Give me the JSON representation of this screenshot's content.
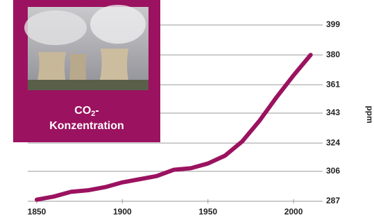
{
  "chart_data": {
    "type": "line",
    "annotation": {
      "text": "CO",
      "subscript": "2",
      "after": "-",
      "line2": "Konzentration"
    },
    "y_label": "ppm",
    "x": [
      1850,
      1860,
      1870,
      1880,
      1890,
      1900,
      1910,
      1920,
      1930,
      1940,
      1950,
      1960,
      1970,
      1980,
      1990,
      2000,
      2010
    ],
    "series": [
      {
        "color": "#9b1260",
        "values": [
          288,
          290,
          293,
          294,
          296,
          299,
          301,
          303,
          307,
          308,
          311,
          316,
          325,
          338,
          353,
          367,
          380
        ]
      }
    ],
    "xlim": [
      1850,
      2017
    ],
    "xticks": [
      1850,
      1900,
      1950,
      2000
    ],
    "ylim": [
      287,
      399
    ],
    "yticks": [
      287,
      306,
      324,
      343,
      361,
      380,
      399
    ],
    "grid": true
  }
}
